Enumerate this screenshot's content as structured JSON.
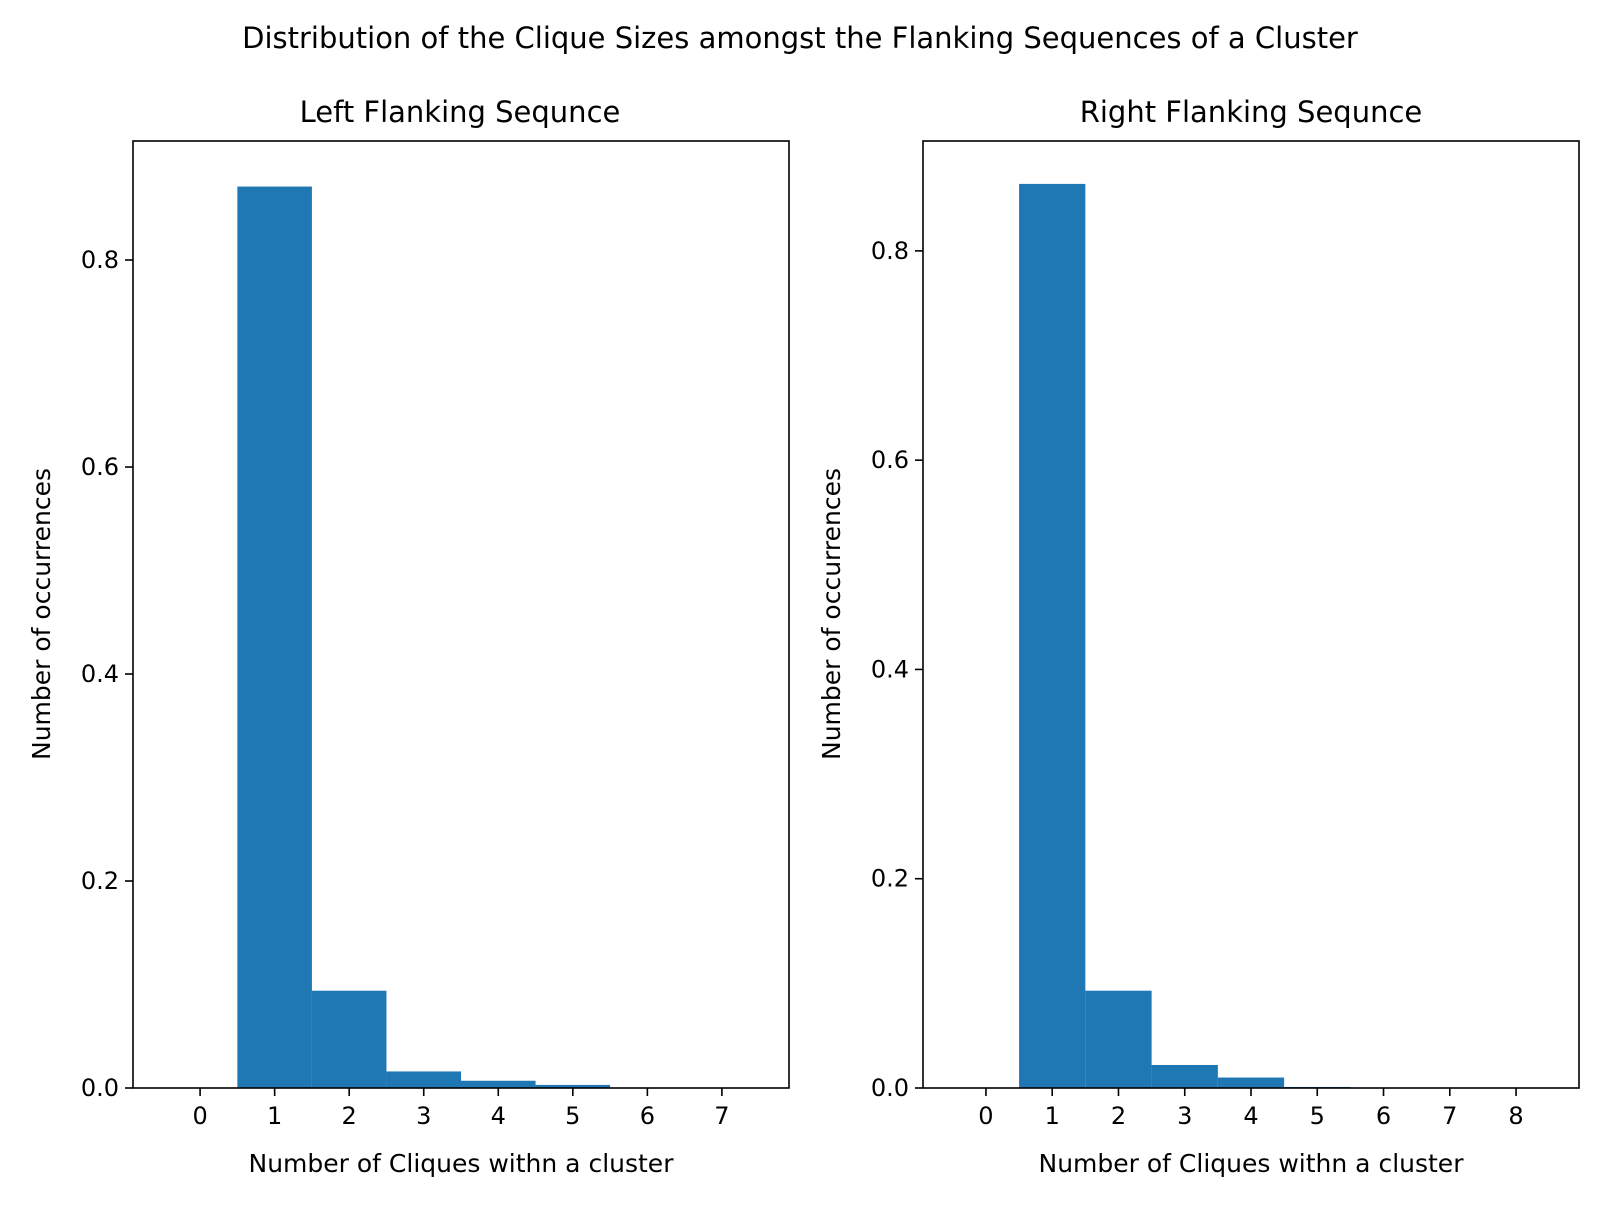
{
  "figure": {
    "suptitle": "Distribution of the Clique Sizes amongst the Flanking Sequences of a Cluster"
  },
  "chart_data": [
    {
      "type": "bar",
      "title": "Left Flanking Sequnce",
      "xlabel": "Number of Cliques withn a cluster",
      "ylabel": "Number of occurrences",
      "x": [
        1,
        2,
        3,
        4,
        5
      ],
      "values": [
        0.871,
        0.094,
        0.016,
        0.007,
        0.003
      ],
      "bar_width": 1,
      "xlim": [
        -0.9,
        7.9
      ],
      "ylim": [
        0,
        0.915
      ],
      "xticks": [
        0,
        1,
        2,
        3,
        4,
        5,
        6,
        7
      ],
      "yticks": [
        0.0,
        0.2,
        0.4,
        0.6,
        0.8
      ],
      "ytick_labels": [
        "0.0",
        "0.2",
        "0.4",
        "0.6",
        "0.8"
      ],
      "bar_color": "#1f77b4",
      "grid": false,
      "legend": "none"
    },
    {
      "type": "bar",
      "title": "Right Flanking Sequnce",
      "xlabel": "Number of Cliques withn a cluster",
      "ylabel": "Number of occurrences",
      "x": [
        1,
        2,
        3,
        4,
        5
      ],
      "values": [
        0.864,
        0.093,
        0.022,
        0.01,
        0.001
      ],
      "bar_width": 1,
      "xlim": [
        -0.95,
        8.95
      ],
      "ylim": [
        0,
        0.905
      ],
      "xticks": [
        0,
        1,
        2,
        3,
        4,
        5,
        6,
        7,
        8
      ],
      "yticks": [
        0.0,
        0.2,
        0.4,
        0.6,
        0.8
      ],
      "ytick_labels": [
        "0.0",
        "0.2",
        "0.4",
        "0.6",
        "0.8"
      ],
      "bar_color": "#1f77b4",
      "grid": false,
      "legend": "none"
    }
  ]
}
